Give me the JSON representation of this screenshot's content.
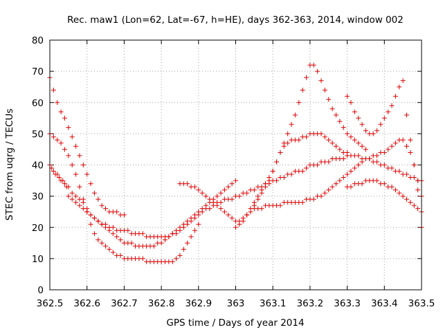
{
  "chart_data": {
    "type": "scatter",
    "title": "Rec. maw1 (Lon=62, Lat=-67, h=HE), days 362-363, 2014, window 002",
    "xlabel": "GPS time / Days of year 2014",
    "ylabel": "STEC from uqrg / TECUs",
    "xlim": [
      362.5,
      363.5
    ],
    "ylim": [
      0,
      80
    ],
    "grid": true,
    "marker": "+",
    "color": "#e00000",
    "xticks": [
      {
        "value": 362.5,
        "label": "362.5"
      },
      {
        "value": 362.6,
        "label": "362.6"
      },
      {
        "value": 362.7,
        "label": "362.7"
      },
      {
        "value": 362.8,
        "label": "362.8"
      },
      {
        "value": 362.9,
        "label": "362.9"
      },
      {
        "value": 363.0,
        "label": "363"
      },
      {
        "value": 363.1,
        "label": "363.1"
      },
      {
        "value": 363.2,
        "label": "363.2"
      },
      {
        "value": 363.3,
        "label": "363.3"
      },
      {
        "value": 363.4,
        "label": "363.4"
      },
      {
        "value": 363.5,
        "label": "363.5"
      }
    ],
    "yticks": [
      {
        "value": 0,
        "label": "0"
      },
      {
        "value": 10,
        "label": "10"
      },
      {
        "value": 20,
        "label": "20"
      },
      {
        "value": 30,
        "label": "30"
      },
      {
        "value": 40,
        "label": "40"
      },
      {
        "value": 50,
        "label": "50"
      },
      {
        "value": 60,
        "label": "60"
      },
      {
        "value": 70,
        "label": "70"
      },
      {
        "value": 80,
        "label": "80"
      }
    ],
    "series": [
      {
        "x": [
          362.5,
          362.505,
          362.51,
          362.515,
          362.52,
          362.525,
          362.53,
          362.535,
          362.54,
          362.545,
          362.55,
          362.56,
          362.57,
          362.58,
          362.59,
          362.6,
          362.61,
          362.62,
          362.63,
          362.64,
          362.65,
          362.66,
          362.67,
          362.68,
          362.69,
          362.7,
          362.71,
          362.72,
          362.73,
          362.74,
          362.75,
          362.76,
          362.77,
          362.78,
          362.79,
          362.8,
          362.81,
          362.82,
          362.83,
          362.84,
          362.85,
          362.86,
          362.87,
          362.88,
          362.89,
          362.9,
          362.91,
          362.92,
          362.93,
          362.94,
          362.95,
          362.96,
          362.97,
          362.98,
          362.99,
          363.0,
          363.01,
          363.02,
          363.03,
          363.04,
          363.05,
          363.06,
          363.07,
          363.08,
          363.09,
          363.1,
          363.11,
          363.12,
          363.13,
          363.14,
          363.15,
          363.16,
          363.17,
          363.18,
          363.19,
          363.2,
          363.21,
          363.22,
          363.23,
          363.24,
          363.25,
          363.26,
          363.27,
          363.28,
          363.29,
          363.3,
          363.31,
          363.32,
          363.33,
          363.34,
          363.35,
          363.36,
          363.37,
          363.38,
          363.39,
          363.4,
          363.41,
          363.42,
          363.43,
          363.44,
          363.45,
          363.46,
          363.47,
          363.48,
          363.49,
          363.5
        ],
        "y": [
          40,
          39,
          38,
          37,
          37,
          36,
          35,
          35,
          34,
          33,
          33,
          31,
          30,
          29,
          28,
          26,
          24,
          23,
          22,
          21,
          21,
          20,
          20,
          19,
          19,
          19,
          19,
          18,
          18,
          18,
          18,
          17,
          17,
          17,
          17,
          17,
          17,
          17,
          18,
          18,
          19,
          20,
          21,
          22,
          23,
          24,
          25,
          26,
          26,
          27,
          28,
          28,
          29,
          29,
          29,
          30,
          30,
          31,
          31,
          32,
          32,
          33,
          33,
          34,
          34,
          35,
          35,
          36,
          36,
          37,
          37,
          38,
          38,
          38,
          39,
          40,
          40,
          40,
          41,
          41,
          41,
          42,
          42,
          42,
          42,
          43,
          43,
          43,
          43,
          42,
          42,
          42,
          41,
          41,
          40,
          40,
          39,
          39,
          38,
          38,
          37,
          37,
          36,
          36,
          35,
          35
        ]
      },
      {
        "x": [
          362.5,
          362.51,
          362.52,
          362.53,
          362.54,
          362.55,
          362.56,
          362.57,
          362.58,
          362.59,
          362.6,
          362.61,
          362.62,
          362.63,
          362.64,
          362.65,
          362.66,
          362.67,
          362.68,
          362.69,
          362.7,
          362.71,
          362.72,
          362.73,
          362.74,
          362.75,
          362.76,
          362.77,
          362.78,
          362.79,
          362.8,
          362.81,
          362.82,
          362.83,
          362.84,
          362.85,
          362.86,
          362.87,
          362.88,
          362.89,
          362.9
        ],
        "y": [
          50,
          49,
          48,
          47,
          45,
          43,
          40,
          37,
          33,
          29,
          25,
          21,
          18,
          16,
          15,
          14,
          13,
          12,
          11,
          11,
          10,
          10,
          10,
          10,
          10,
          10,
          9,
          9,
          9,
          9,
          9,
          9,
          9,
          9,
          10,
          11,
          13,
          15,
          17,
          19,
          21
        ]
      },
      {
        "x": [
          362.5,
          362.51,
          362.52,
          362.53,
          362.54,
          362.55,
          362.56,
          362.57,
          362.58,
          362.59,
          362.6,
          362.61,
          362.62,
          362.63,
          362.64,
          362.65,
          362.66,
          362.67,
          362.68,
          362.69,
          362.7
        ],
        "y": [
          68,
          64,
          60,
          57,
          55,
          52,
          49,
          46,
          43,
          40,
          37,
          34,
          31,
          29,
          27,
          26,
          25,
          25,
          25,
          24,
          24
        ]
      },
      {
        "x": [
          362.55,
          362.56,
          362.57,
          362.58,
          362.59,
          362.6,
          362.61,
          362.62,
          362.63,
          362.64,
          362.65,
          362.66,
          362.67,
          362.68,
          362.69,
          362.7,
          362.71,
          362.72,
          362.73,
          362.74,
          362.75,
          362.76,
          362.77,
          362.78,
          362.79,
          362.8,
          362.81,
          362.82,
          362.83,
          362.84,
          362.85,
          362.86,
          362.87,
          362.88,
          362.89,
          362.9,
          362.91,
          362.92,
          362.93,
          362.94,
          362.95,
          362.96,
          362.97,
          362.98,
          362.99,
          363.0
        ],
        "y": [
          30,
          29,
          28,
          27,
          26,
          25,
          24,
          23,
          22,
          21,
          20,
          19,
          18,
          17,
          16,
          15,
          15,
          15,
          14,
          14,
          14,
          14,
          14,
          14,
          15,
          15,
          16,
          17,
          18,
          19,
          20,
          21,
          22,
          23,
          24,
          25,
          26,
          27,
          28,
          29,
          30,
          31,
          32,
          33,
          34,
          35
        ]
      },
      {
        "x": [
          362.85,
          362.86,
          362.87,
          362.88,
          362.89,
          362.9,
          362.91,
          362.92,
          362.93,
          362.94,
          362.95,
          362.96,
          362.97,
          362.98,
          362.99,
          363.0,
          363.01,
          363.02,
          363.03,
          363.04,
          363.05,
          363.06,
          363.07,
          363.08,
          363.09,
          363.1,
          363.11,
          363.12,
          363.13,
          363.14,
          363.15,
          363.16,
          363.17,
          363.18,
          363.19,
          363.2,
          363.21,
          363.22,
          363.23,
          363.24,
          363.25,
          363.26,
          363.27,
          363.28,
          363.29,
          363.3
        ],
        "y": [
          34,
          34,
          34,
          33,
          33,
          32,
          31,
          30,
          29,
          28,
          27,
          26,
          25,
          24,
          23,
          22,
          22,
          23,
          24,
          25,
          27,
          29,
          31,
          33,
          35,
          38,
          41,
          44,
          46,
          47,
          48,
          48,
          48,
          49,
          49,
          50,
          50,
          50,
          50,
          49,
          48,
          47,
          46,
          45,
          44,
          44
        ]
      },
      {
        "x": [
          363.0,
          363.01,
          363.02,
          363.03,
          363.04,
          363.05,
          363.06,
          363.07,
          363.08,
          363.09,
          363.1,
          363.11,
          363.12,
          363.13,
          363.14,
          363.15,
          363.16,
          363.17,
          363.18,
          363.19,
          363.2,
          363.21,
          363.22,
          363.23,
          363.24,
          363.25,
          363.26,
          363.27,
          363.28,
          363.29,
          363.3,
          363.31,
          363.32,
          363.33,
          363.34,
          363.35
        ],
        "y": [
          20,
          21,
          22,
          24,
          26,
          28,
          30,
          32,
          34,
          36,
          38,
          41,
          44,
          47,
          50,
          53,
          56,
          60,
          64,
          68,
          72,
          72,
          70,
          67,
          64,
          61,
          58,
          56,
          54,
          52,
          50,
          49,
          48,
          47,
          46,
          45
        ]
      },
      {
        "x": [
          363.05,
          363.06,
          363.07,
          363.08,
          363.09,
          363.1,
          363.11,
          363.12,
          363.13,
          363.14,
          363.15,
          363.16,
          363.17,
          363.18,
          363.19,
          363.2,
          363.21,
          363.22,
          363.23,
          363.24,
          363.25,
          363.26,
          363.27,
          363.28,
          363.29,
          363.3,
          363.31,
          363.32,
          363.33,
          363.34,
          363.35,
          363.36,
          363.37,
          363.38,
          363.39,
          363.4,
          363.41,
          363.42,
          363.43,
          363.44,
          363.45,
          363.46,
          363.47,
          363.48,
          363.49,
          363.5
        ],
        "y": [
          26,
          26,
          26,
          27,
          27,
          27,
          27,
          27,
          28,
          28,
          28,
          28,
          28,
          28,
          29,
          29,
          29,
          30,
          30,
          31,
          32,
          33,
          34,
          35,
          36,
          37,
          38,
          39,
          40,
          41,
          42,
          42,
          43,
          43,
          44,
          44,
          45,
          46,
          47,
          48,
          48,
          46,
          44,
          40,
          32,
          20
        ]
      },
      {
        "x": [
          363.3,
          363.31,
          363.32,
          363.33,
          363.34,
          363.35,
          363.36,
          363.37,
          363.38,
          363.39,
          363.4,
          363.41,
          363.42,
          363.43,
          363.44,
          363.45,
          363.46,
          363.47,
          363.48,
          363.49,
          363.5
        ],
        "y": [
          62,
          60,
          57,
          55,
          53,
          51,
          50,
          50,
          51,
          53,
          55,
          57,
          59,
          62,
          65,
          67,
          56,
          48,
          40,
          35,
          30
        ]
      },
      {
        "x": [
          363.3,
          363.31,
          363.32,
          363.33,
          363.34,
          363.35,
          363.36,
          363.37,
          363.38,
          363.39,
          363.4,
          363.41,
          363.42,
          363.43,
          363.44,
          363.45,
          363.46,
          363.47,
          363.48,
          363.49,
          363.5
        ],
        "y": [
          33,
          33,
          34,
          34,
          34,
          35,
          35,
          35,
          35,
          34,
          34,
          33,
          33,
          32,
          31,
          30,
          29,
          28,
          27,
          26,
          25
        ]
      }
    ]
  }
}
